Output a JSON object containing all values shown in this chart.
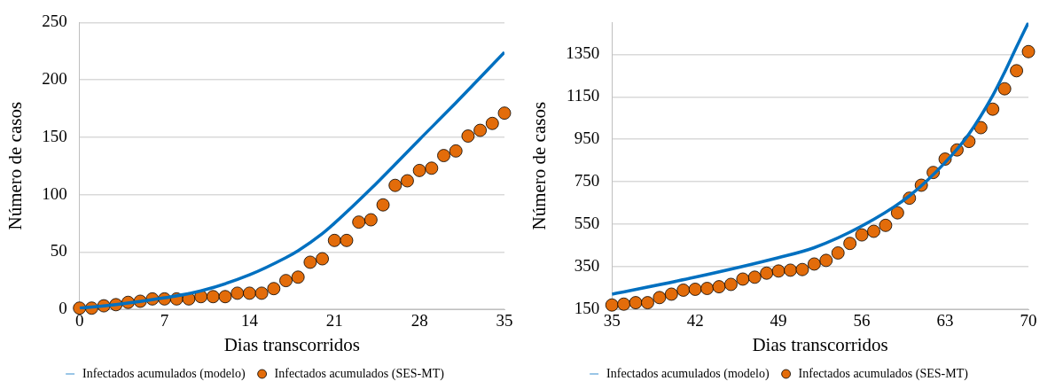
{
  "chart_data": [
    {
      "type": "scatter",
      "xlabel": "Dias transcorridos",
      "ylabel": "Número de casos",
      "x": [
        0,
        1,
        2,
        3,
        4,
        5,
        6,
        7,
        8,
        9,
        10,
        11,
        12,
        13,
        14,
        15,
        16,
        17,
        18,
        19,
        20,
        21,
        22,
        23,
        24,
        25,
        26,
        27,
        28,
        29,
        30,
        31,
        32,
        33,
        34,
        35
      ],
      "xlim": [
        0,
        35
      ],
      "xticks": [
        0,
        7,
        14,
        21,
        28,
        35
      ],
      "ylim": [
        0,
        250
      ],
      "yticks": [
        0,
        50,
        100,
        150,
        200,
        250
      ],
      "grid": "y",
      "legend": "bottom",
      "series": [
        {
          "name": "Infectados acumulados (SES-MT)",
          "color": "#e36c0a",
          "marker": "circle",
          "values": [
            1,
            1,
            3,
            4,
            6,
            7,
            9,
            9,
            9,
            9,
            11,
            11,
            11,
            14,
            14,
            14,
            18,
            25,
            28,
            41,
            44,
            60,
            60,
            76,
            78,
            91,
            108,
            112,
            121,
            123,
            134,
            138,
            151,
            156,
            162,
            171
          ]
        },
        {
          "name": "Infectados acumulados (modelo)",
          "type": "line",
          "color": "#0070c0",
          "marker": "none",
          "line_style": "solid",
          "x": [
            0,
            3,
            7,
            10,
            14,
            17,
            18,
            20,
            21,
            24,
            28,
            31,
            35
          ],
          "values": [
            1,
            4,
            10,
            16,
            30,
            45,
            51,
            66,
            75,
            105,
            148,
            180,
            224
          ]
        }
      ]
    },
    {
      "type": "scatter",
      "xlabel": "Dias transcorridos",
      "ylabel": "Número de casos",
      "x": [
        35,
        36,
        37,
        38,
        39,
        40,
        41,
        42,
        43,
        44,
        45,
        46,
        47,
        48,
        49,
        50,
        51,
        52,
        53,
        54,
        55,
        56,
        57,
        58,
        59,
        60,
        61,
        62,
        63,
        64,
        65,
        66,
        67,
        68,
        69,
        70
      ],
      "xlim": [
        35,
        70
      ],
      "xticks": [
        35,
        42,
        49,
        56,
        63,
        70
      ],
      "ylim": [
        150,
        1500
      ],
      "yticks": [
        150,
        350,
        550,
        750,
        950,
        1150,
        1350
      ],
      "grid": "y",
      "legend": "bottom",
      "series": [
        {
          "name": "Infectados acumulados (SES-MT)",
          "color": "#e36c0a",
          "marker": "circle",
          "values": [
            170,
            174,
            181,
            181,
            205,
            221,
            240,
            244,
            248,
            256,
            267,
            292,
            301,
            320,
            330,
            334,
            337,
            363,
            380,
            415,
            460,
            500,
            517,
            545,
            604,
            673,
            734,
            794,
            857,
            900,
            940,
            1005,
            1092,
            1188,
            1273,
            1363
          ]
        },
        {
          "name": "Infectados acumulados (modelo)",
          "type": "line",
          "color": "#0070c0",
          "marker": "none",
          "line_style": "solid",
          "x": [
            35,
            42,
            49,
            52,
            56,
            60,
            63,
            65,
            67,
            68,
            69,
            70
          ],
          "values": [
            221,
            301,
            393,
            440,
            542,
            684,
            841,
            975,
            1156,
            1266,
            1385,
            1500
          ]
        }
      ]
    }
  ]
}
